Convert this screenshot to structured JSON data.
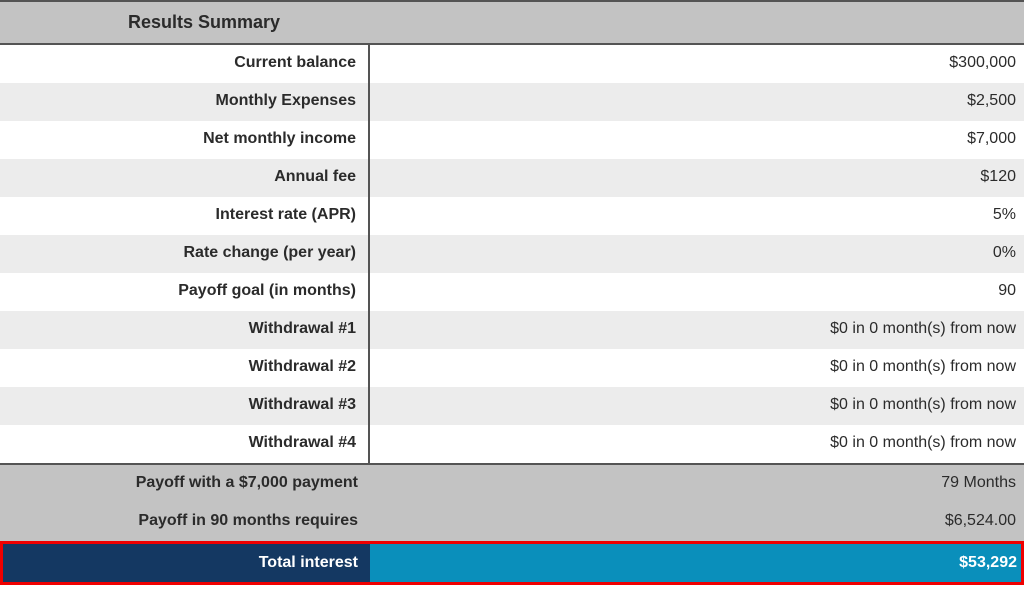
{
  "header": {
    "title": "Results Summary"
  },
  "rows": [
    {
      "label": "Current balance",
      "value": "$300,000"
    },
    {
      "label": "Monthly Expenses",
      "value": "$2,500"
    },
    {
      "label": "Net monthly income",
      "value": "$7,000"
    },
    {
      "label": "Annual fee",
      "value": "$120"
    },
    {
      "label": "Interest rate (APR)",
      "value": "5%"
    },
    {
      "label": "Rate change (per year)",
      "value": "0%"
    },
    {
      "label": "Payoff goal (in months)",
      "value": "90"
    },
    {
      "label": "Withdrawal #1",
      "value": "$0 in 0 month(s) from now"
    },
    {
      "label": "Withdrawal #2",
      "value": "$0 in 0 month(s) from now"
    },
    {
      "label": "Withdrawal #3",
      "value": "$0 in 0 month(s) from now"
    },
    {
      "label": "Withdrawal #4",
      "value": "$0 in 0 month(s) from now"
    }
  ],
  "footer": [
    {
      "label": "Payoff with a $7,000 payment",
      "value": "79 Months"
    },
    {
      "label": "Payoff in 90 months requires",
      "value": "$6,524.00"
    }
  ],
  "highlight": {
    "label": "Total interest",
    "value": "$53,292"
  },
  "colors": {
    "header_bg": "#c3c3c3",
    "row_odd_bg": "#ffffff",
    "row_even_bg": "#ececec",
    "footer_bg": "#c3c3c3",
    "border": "#545454",
    "highlight_border": "#ef0000",
    "highlight_label_bg": "#143862",
    "highlight_value_bg": "#0a8fbb",
    "highlight_text": "#ffffff",
    "text": "#2b2b2b"
  }
}
